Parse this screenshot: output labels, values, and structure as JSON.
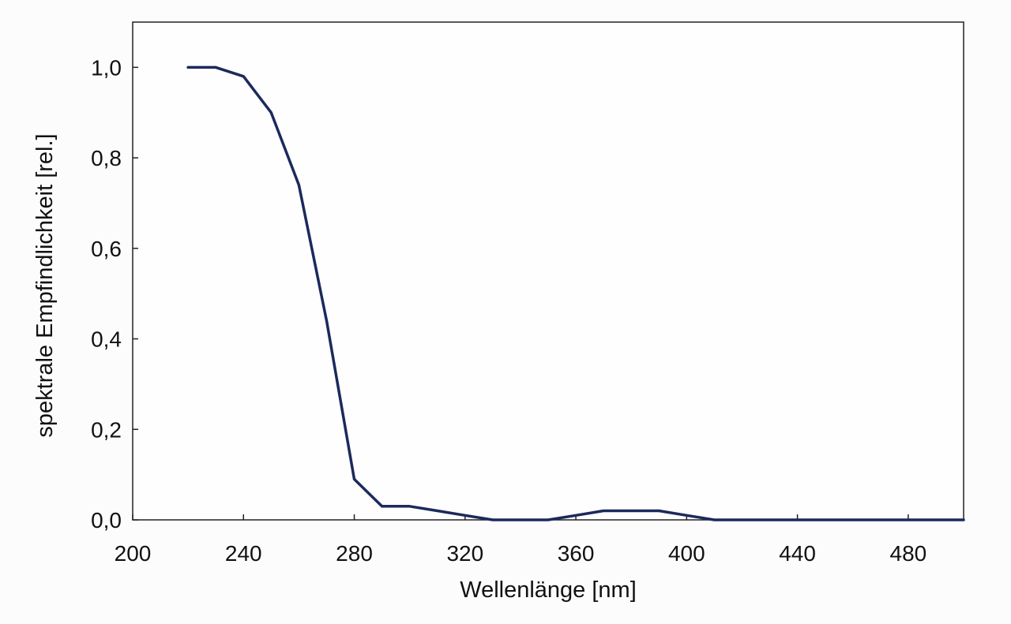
{
  "chart_data": {
    "type": "line",
    "title": "",
    "xlabel": "Wellenlänge [nm]",
    "ylabel": "spektrale Empfindlichkeit [rel.]",
    "xlim": [
      200,
      500
    ],
    "ylim": [
      0,
      1.1
    ],
    "x_ticks": [
      200,
      240,
      280,
      320,
      360,
      400,
      440,
      480
    ],
    "x_tick_labels": [
      "200",
      "240",
      "280",
      "320",
      "360",
      "400",
      "440",
      "480"
    ],
    "y_ticks": [
      0,
      0.2,
      0.4,
      0.6,
      0.8,
      1.0
    ],
    "y_tick_labels": [
      "0,0",
      "0,2",
      "0,4",
      "0,6",
      "0,8",
      "1,0"
    ],
    "grid": false,
    "legend": "none",
    "line_color": "#1b2a5c",
    "series": [
      {
        "x": [
          220,
          230,
          240,
          250,
          260,
          270,
          280,
          290,
          300,
          310,
          320,
          330,
          340,
          350,
          360,
          370,
          380,
          390,
          400,
          410,
          420,
          440,
          460,
          480,
          500
        ],
        "y": [
          1.0,
          1.0,
          0.98,
          0.9,
          0.74,
          0.44,
          0.09,
          0.03,
          0.03,
          0.02,
          0.01,
          0.0,
          0.0,
          0.0,
          0.01,
          0.02,
          0.02,
          0.02,
          0.01,
          0.0,
          0.0,
          0.0,
          0.0,
          0.0,
          0.0
        ]
      }
    ]
  }
}
